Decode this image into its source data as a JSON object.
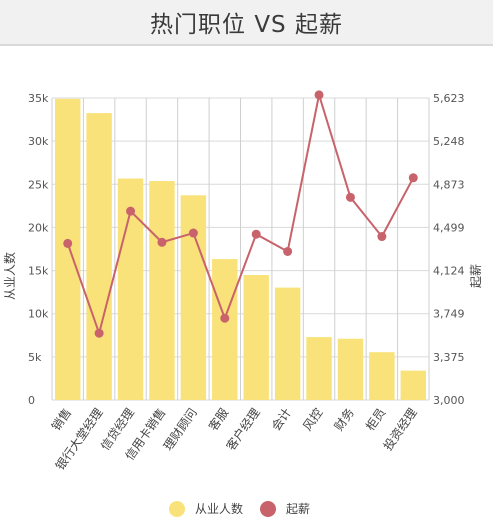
{
  "chart_data": {
    "type": "bar+line",
    "title": "热门职位 VS 起薪",
    "categories": [
      "销售",
      "银行大堂经理",
      "信贷经理",
      "信用卡销售",
      "理财顾问",
      "客服",
      "客户经理",
      "会计",
      "风控",
      "财务",
      "柜员",
      "投资经理"
    ],
    "series": [
      {
        "name": "从业人数",
        "type": "bar",
        "axis": "left",
        "color": "#f9e27a",
        "values": [
          35900,
          34200,
          26400,
          26100,
          24400,
          16800,
          14900,
          13400,
          7500,
          7300,
          5700,
          3500
        ]
      },
      {
        "name": "起薪",
        "type": "line",
        "axis": "right",
        "color": "#c8626b",
        "values": [
          4360,
          3580,
          4640,
          4370,
          4450,
          3710,
          4440,
          4290,
          5650,
          4760,
          4420,
          4930
        ]
      }
    ],
    "ylabel_left": "从业人数",
    "ylabel_right": "起薪",
    "ylim_left": [
      0,
      36000
    ],
    "yticks_left": [
      "0",
      "5k",
      "10k",
      "15k",
      "20k",
      "25k",
      "30k",
      "35k"
    ],
    "ylim_right": [
      3000,
      5623
    ],
    "yticks_right": [
      "3,000",
      "3,375",
      "3,749",
      "4,124",
      "4,499",
      "4,873",
      "5,248",
      "5,623"
    ],
    "grid": true,
    "legend_position": "bottom"
  }
}
